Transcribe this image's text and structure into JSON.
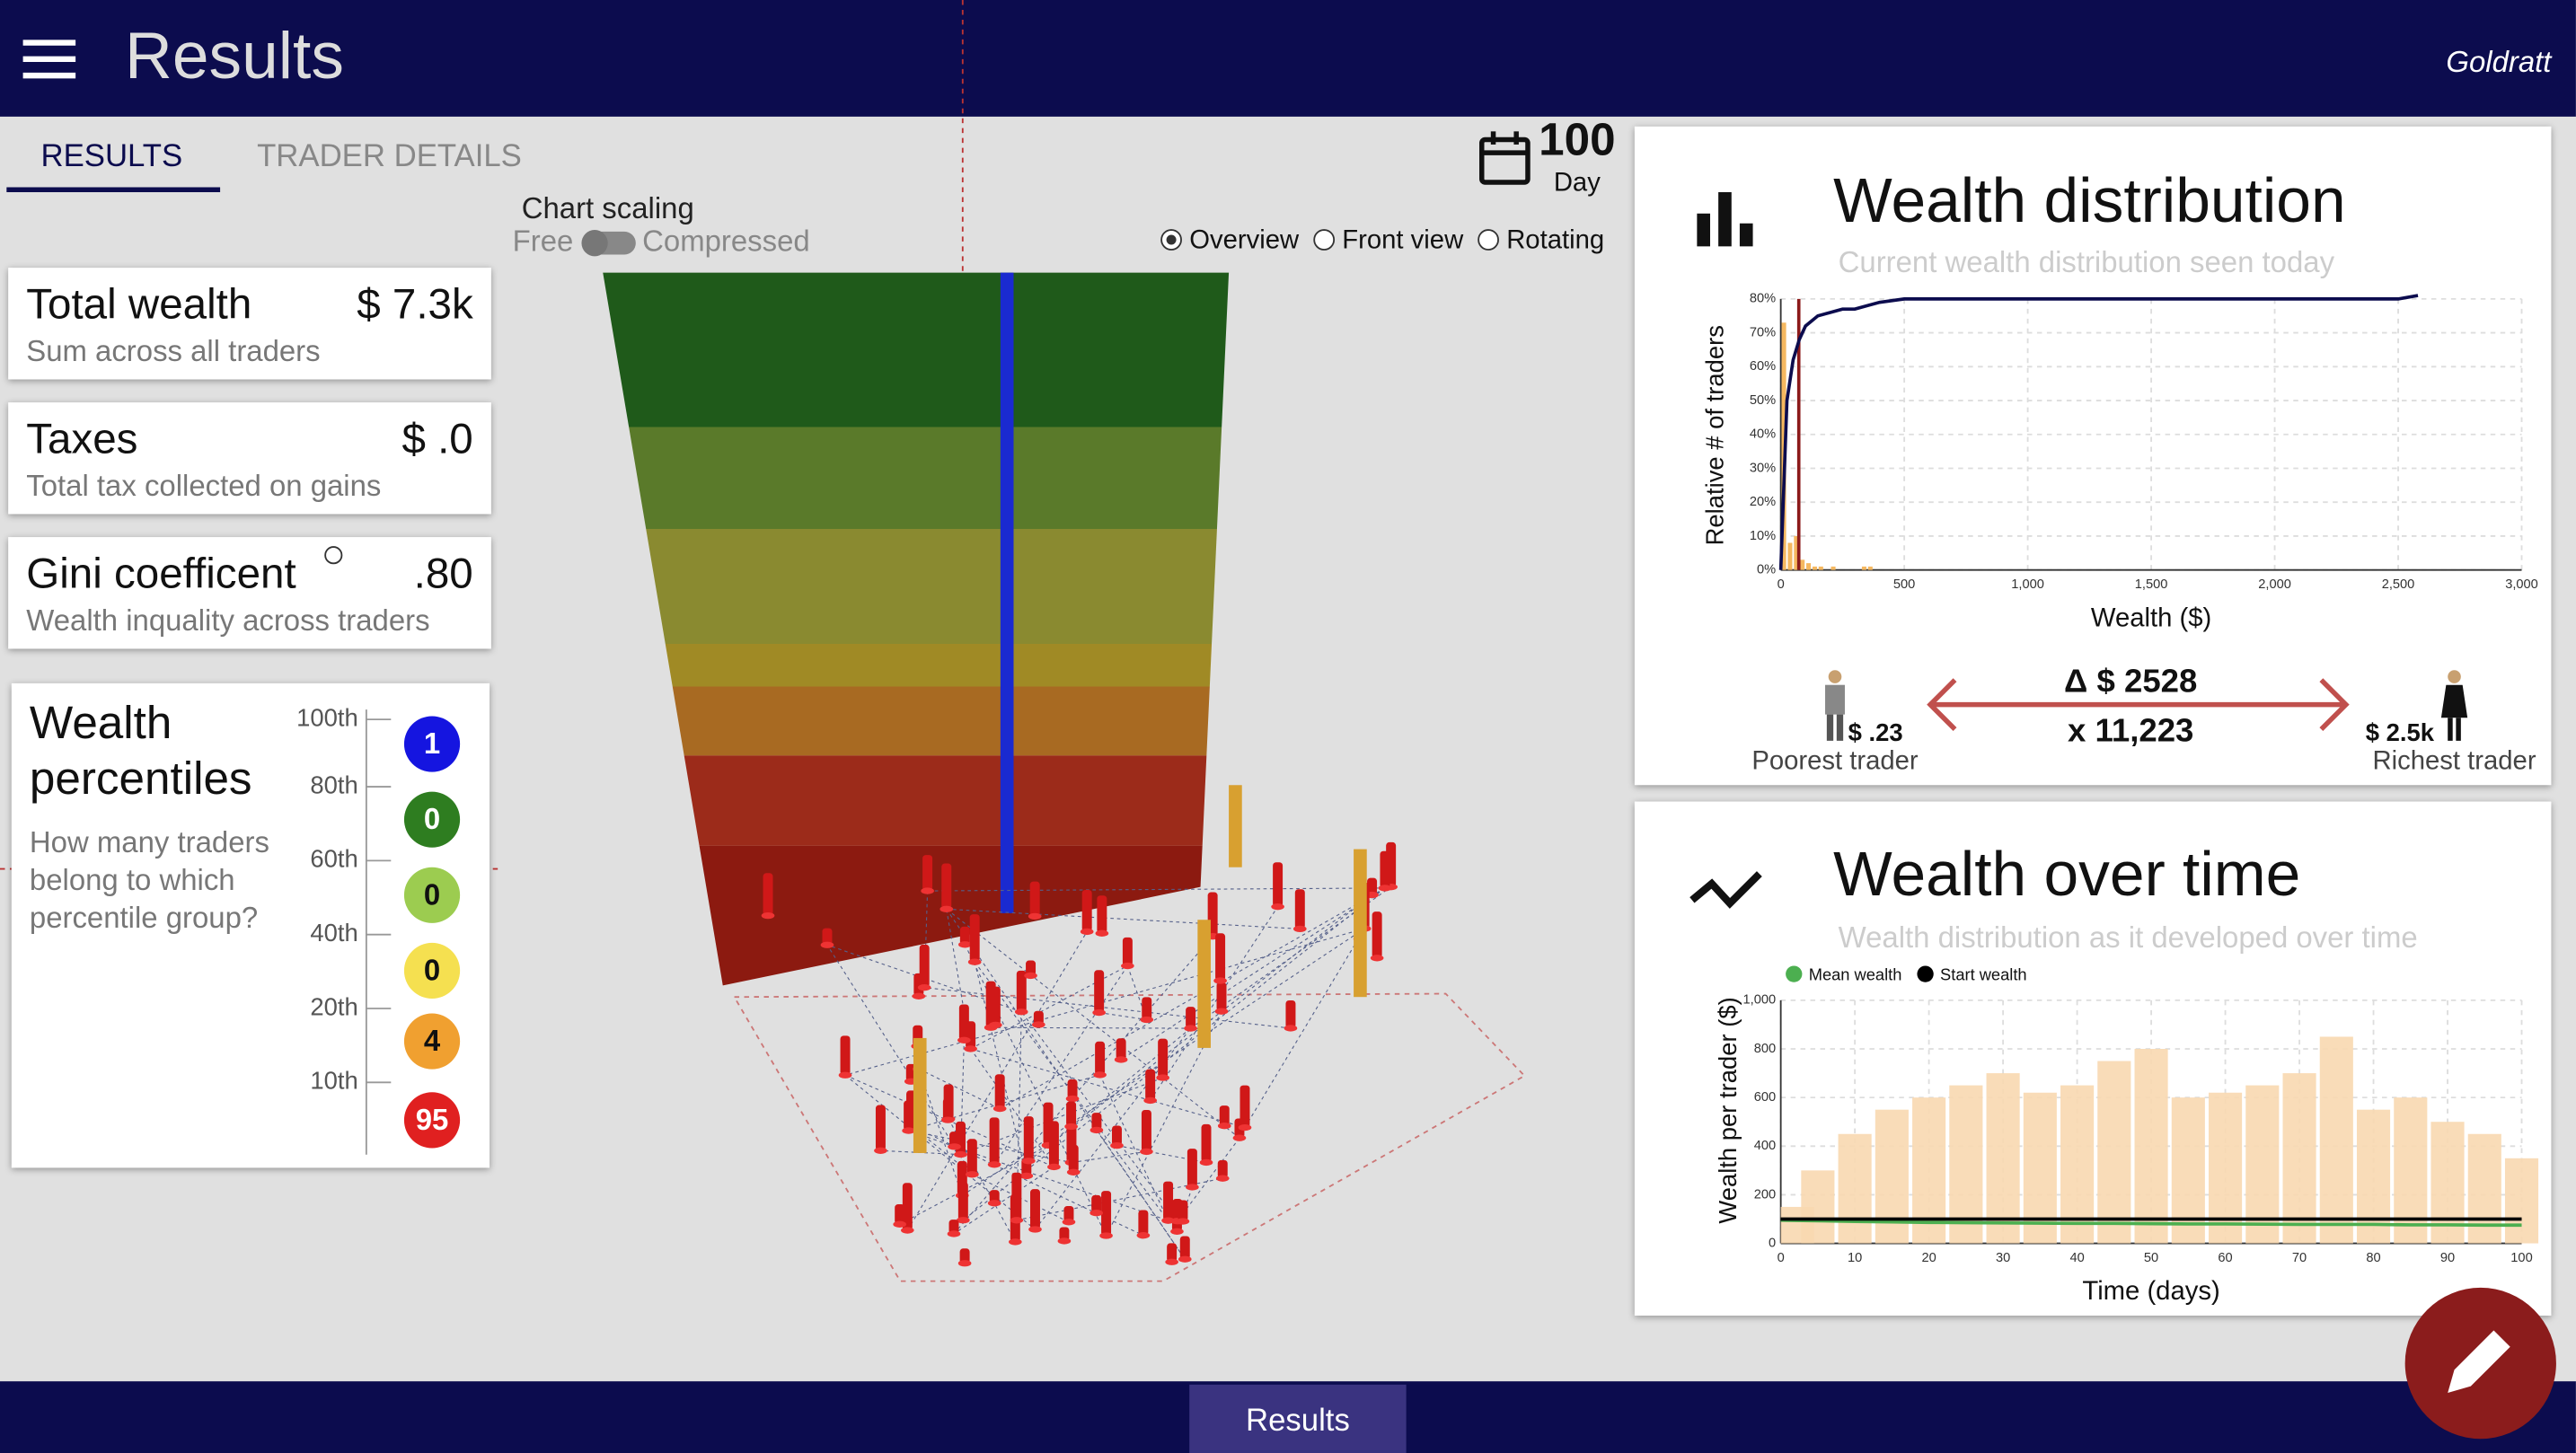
{
  "header": {
    "title": "Results",
    "logo": "Goldratt"
  },
  "tabs": [
    "RESULTS",
    "TRADER DETAILS"
  ],
  "chart_scaling": {
    "label": "Chart scaling",
    "left": "Free",
    "right": "Compressed"
  },
  "day": {
    "value": 100,
    "label": "Day"
  },
  "view_options": [
    "Overview",
    "Front view",
    "Rotating"
  ],
  "stats": [
    {
      "title": "Total wealth",
      "value": "$ 7.3k",
      "subtitle": "Sum across all traders"
    },
    {
      "title": "Taxes",
      "value": "$ .0",
      "subtitle": "Total tax collected on gains"
    },
    {
      "title": "Gini coefficent",
      "value": ".80",
      "subtitle": "Wealth inquality across traders"
    }
  ],
  "percentiles": {
    "title_lines": [
      "Wealth",
      "percentiles"
    ],
    "subtitle_lines": [
      "How many traders",
      "belong to which",
      "percentile group?"
    ],
    "levels": [
      "100th",
      "80th",
      "60th",
      "40th",
      "20th",
      "10th"
    ],
    "counts": [
      1,
      0,
      0,
      0,
      4,
      95
    ],
    "colors": [
      "#1515e0",
      "#2e7d20",
      "#9ccc50",
      "#f5e050",
      "#f0a030",
      "#e02020"
    ]
  },
  "distribution_card": {
    "title": "Wealth distribution",
    "subtitle": "Current wealth distribution seen today",
    "poorest_value": "$ .23",
    "poorest_label": "Poorest trader",
    "richest_value": "$ 2.5k",
    "richest_label": "Richest trader",
    "delta": "Δ $ 2528",
    "ratio": "x 11,223"
  },
  "over_time_card": {
    "title": "Wealth over time",
    "subtitle": "Wealth distribution as it developed over time"
  },
  "bottom_tab": "Results",
  "chart_data": [
    {
      "type": "histogram",
      "x_label": "Wealth ($)",
      "y_label": "Relative # of traders",
      "bins": [
        0,
        25,
        50,
        75,
        100,
        125,
        150,
        175,
        200,
        225,
        250,
        275,
        300,
        325,
        350,
        375
      ],
      "counts": [
        73,
        8,
        10,
        3,
        2,
        1,
        1,
        0,
        1,
        0,
        0,
        0,
        0,
        1,
        1
      ],
      "color": "#f5b860",
      "cumulative": {
        "color": "#0c0c4e",
        "x": [
          0,
          25,
          50,
          75,
          100,
          150,
          200,
          250,
          300,
          350,
          400,
          500,
          2500,
          2580
        ],
        "values": [
          0,
          50,
          62,
          68,
          72,
          75,
          76,
          77,
          77,
          78,
          79,
          80,
          80,
          81
        ]
      },
      "marker": {
        "value": 73,
        "color": "#8b1a1a"
      },
      "xlim": [
        0,
        3000
      ],
      "xticks": [
        0,
        500,
        {
          "value": 1000,
          "label": "1,000"
        },
        {
          "value": 1500,
          "label": "1,500"
        },
        {
          "value": 2000,
          "label": "2,000"
        },
        {
          "value": 2500,
          "label": "2,500"
        },
        {
          "value": 3000,
          "label": "3,000"
        }
      ],
      "ylim": [
        0,
        80
      ],
      "yticks": [
        {
          "value": 0,
          "label": "0%"
        },
        {
          "value": 10,
          "label": "10%"
        },
        {
          "value": 20,
          "label": "20%"
        },
        {
          "value": 30,
          "label": "30%"
        },
        {
          "value": 40,
          "label": "40%"
        },
        {
          "value": 50,
          "label": "50%"
        },
        {
          "value": 60,
          "label": "60%"
        },
        {
          "value": 70,
          "label": "70%"
        },
        {
          "value": 80,
          "label": "80%"
        }
      ],
      "grid": true
    },
    {
      "type": "line",
      "x_label": "Time (days)",
      "y_label": "Wealth per trader ($)",
      "x": [
        0,
        5,
        10,
        15,
        20,
        25,
        30,
        35,
        40,
        45,
        50,
        55,
        60,
        65,
        70,
        75,
        80,
        85,
        90,
        95,
        100
      ],
      "series": [
        {
          "name": "Mean wealth",
          "color": "#4caf50",
          "values": [
            95,
            93,
            90,
            88,
            86,
            85,
            84,
            83,
            82,
            82,
            81,
            80,
            80,
            79,
            78,
            78,
            78,
            76,
            76,
            75,
            75
          ]
        },
        {
          "name": "Start wealth",
          "color": "#000000",
          "values": [
            100,
            100,
            100,
            100,
            100,
            100,
            100,
            100,
            100,
            100,
            100,
            100,
            100,
            100,
            100,
            100,
            100,
            100,
            100,
            100,
            100
          ]
        }
      ],
      "range_area": {
        "color": "#f8d8b0",
        "values": [
          150,
          300,
          450,
          550,
          600,
          650,
          700,
          620,
          650,
          750,
          800,
          600,
          620,
          650,
          700,
          850,
          550,
          600,
          500,
          450,
          350
        ]
      },
      "xlim": [
        0,
        100
      ],
      "xticks": [
        0,
        10,
        20,
        30,
        40,
        50,
        60,
        70,
        80,
        90,
        100
      ],
      "ylim": [
        0,
        1000
      ],
      "yticks": [
        0,
        200,
        400,
        600,
        800,
        {
          "value": 1000,
          "label": "1,000"
        }
      ],
      "grid": true
    }
  ]
}
